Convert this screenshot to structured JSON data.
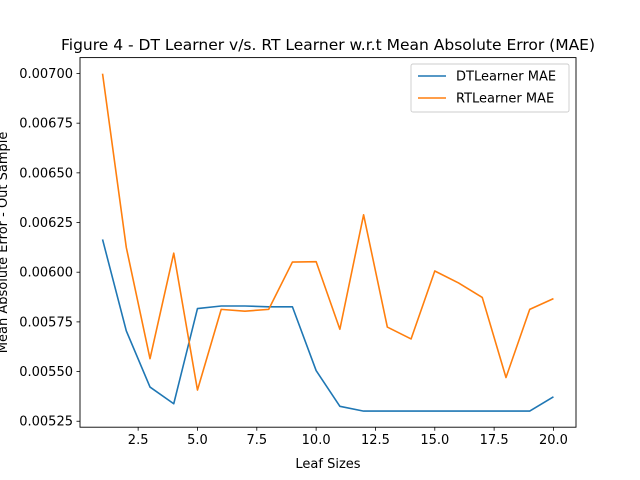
{
  "chart_data": {
    "type": "line",
    "title": "Figure 4 - DT Learner v/s. RT Learner w.r.t Mean Absolute Error (MAE)",
    "xlabel": "Leaf Sizes",
    "ylabel": "Mean Absolute Error - Out Sample",
    "xlim": [
      0.05,
      20.95
    ],
    "ylim": [
      0.00522,
      0.00708
    ],
    "xticks": [
      2.5,
      5.0,
      7.5,
      10.0,
      12.5,
      15.0,
      17.5,
      20.0
    ],
    "xtick_labels": [
      "2.5",
      "5.0",
      "7.5",
      "10.0",
      "12.5",
      "15.0",
      "17.5",
      "20.0"
    ],
    "yticks": [
      0.00525,
      0.0055,
      0.00575,
      0.006,
      0.00625,
      0.0065,
      0.00675,
      0.007
    ],
    "ytick_labels": [
      "0.00525",
      "0.00550",
      "0.00575",
      "0.00600",
      "0.00625",
      "0.00650",
      "0.00675",
      "0.00700"
    ],
    "grid": false,
    "legend_position": "top-right",
    "x": [
      1,
      2,
      3,
      4,
      5,
      6,
      7,
      8,
      9,
      10,
      11,
      12,
      13,
      14,
      15,
      16,
      17,
      18,
      19,
      20
    ],
    "series": [
      {
        "name": "DTLearner MAE",
        "color": "#1f77b4",
        "values": [
          0.006165,
          0.005705,
          0.005422,
          0.005338,
          0.005817,
          0.00583,
          0.00583,
          0.005826,
          0.005826,
          0.005505,
          0.005325,
          0.005301,
          0.005301,
          0.005301,
          0.005301,
          0.005301,
          0.005301,
          0.005301,
          0.005301,
          0.005373
        ]
      },
      {
        "name": "RTLearner MAE",
        "color": "#ff7f0e",
        "values": [
          0.006999,
          0.006125,
          0.005565,
          0.006096,
          0.005407,
          0.005813,
          0.005804,
          0.005813,
          0.006051,
          0.006053,
          0.005713,
          0.006289,
          0.005724,
          0.005664,
          0.006006,
          0.005946,
          0.005873,
          0.00547,
          0.005813,
          0.005867
        ]
      }
    ]
  }
}
